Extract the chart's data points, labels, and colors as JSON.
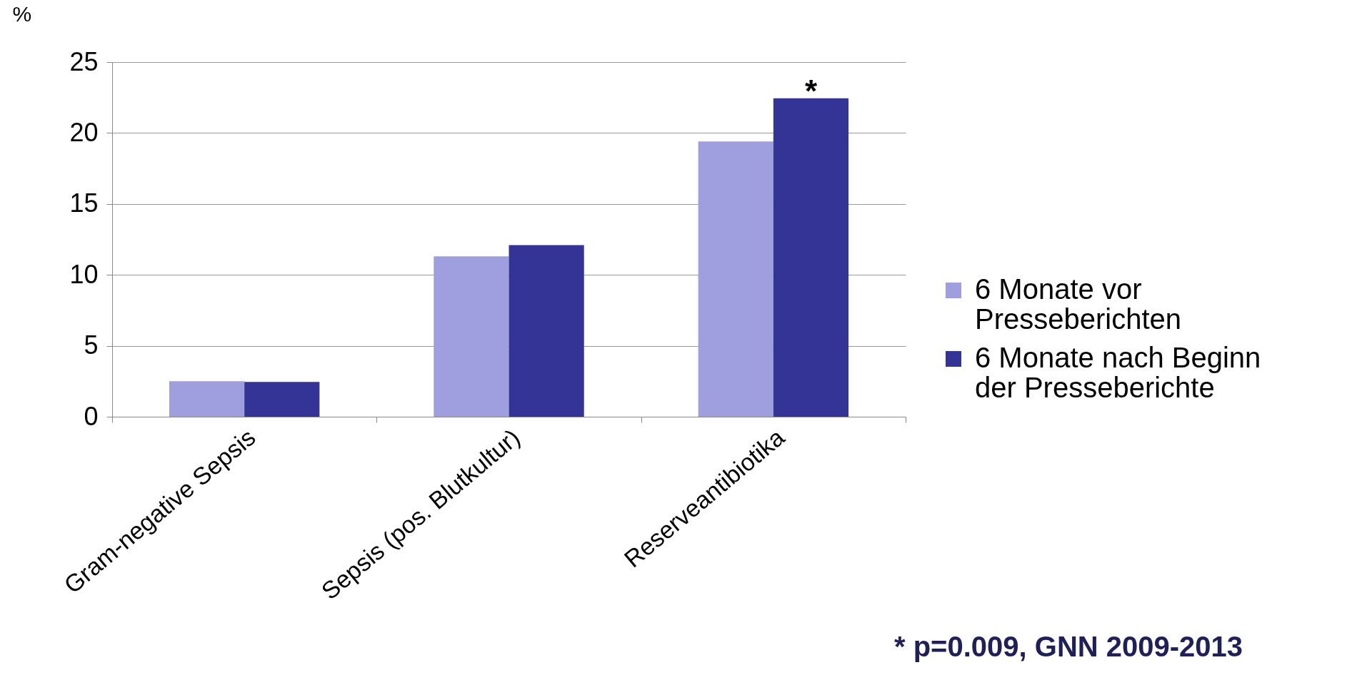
{
  "chart_data": {
    "type": "bar",
    "ylabel": "%",
    "categories": [
      "Gram-negative Sepsis",
      "Sepsis (pos. Blutkultur)",
      "Reserveantibiotika"
    ],
    "series": [
      {
        "name": "6 Monate vor Presseberichten",
        "color": "#9f9fdf",
        "values": [
          2.5,
          11.3,
          19.4
        ]
      },
      {
        "name": "6 Monate nach Beginn der Presseberichte",
        "color": "#343496",
        "values": [
          2.45,
          12.1,
          22.45
        ]
      }
    ],
    "ylim": [
      0,
      25
    ],
    "yticks": [
      0,
      5,
      10,
      15,
      20,
      25
    ],
    "grid": "y",
    "legend": "right",
    "annotations": [
      {
        "text": "*",
        "x": "Reserveantibiotika",
        "y": 22.45
      },
      "* p=0.009, GNN 2009-2013"
    ]
  }
}
